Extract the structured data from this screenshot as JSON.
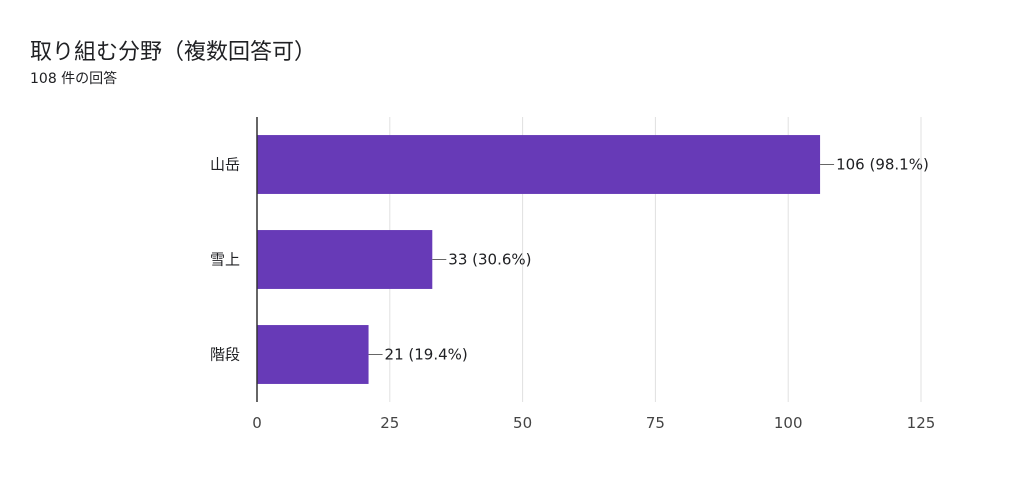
{
  "header": {
    "title": "取り組む分野（複数回答可）",
    "response_count": "108 件の回答"
  },
  "chart_data": {
    "type": "bar",
    "orientation": "horizontal",
    "categories": [
      "山岳",
      "雪上",
      "階段"
    ],
    "values": [
      106,
      33,
      21
    ],
    "data_labels": [
      "106 (98.1%)",
      "33 (30.6%)",
      "21 (19.4%)"
    ],
    "xlim": [
      0,
      125
    ],
    "x_ticks": [
      0,
      25,
      50,
      75,
      100,
      125
    ],
    "grid": true,
    "bar_color": "#673ab7"
  }
}
